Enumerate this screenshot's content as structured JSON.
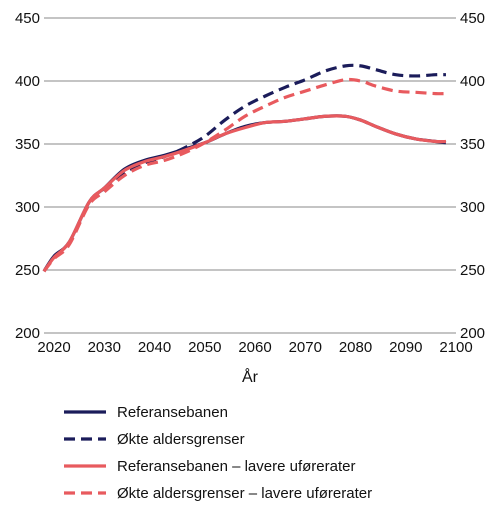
{
  "chart_data": {
    "type": "line",
    "xlabel": "År",
    "ylabel": "",
    "xlim": [
      2018,
      2100
    ],
    "ylim": [
      200,
      450
    ],
    "x_ticks": [
      2020,
      2030,
      2040,
      2050,
      2060,
      2070,
      2080,
      2090,
      2100
    ],
    "y_ticks": [
      200,
      250,
      300,
      350,
      400,
      450
    ],
    "grid": "horizontal",
    "legend_position": "bottom",
    "x": [
      2018,
      2020,
      2023,
      2027,
      2030,
      2034,
      2038,
      2042,
      2046,
      2050,
      2054,
      2058,
      2062,
      2066,
      2070,
      2074,
      2078,
      2081,
      2084,
      2088,
      2092,
      2096,
      2098
    ],
    "series": [
      {
        "name": "Referansebanen",
        "color": "#1b1c5a",
        "dash": "solid",
        "values": [
          249,
          261,
          272,
          304,
          315,
          330,
          337,
          341,
          346,
          351,
          358,
          364,
          367,
          368,
          370,
          372,
          372,
          369,
          364,
          358,
          354,
          352,
          351
        ]
      },
      {
        "name": "Økte aldersgrenser",
        "color": "#1b1c5a",
        "dash": "dashed",
        "values": [
          249,
          260,
          271,
          303,
          314,
          327,
          335,
          340,
          347,
          356,
          369,
          380,
          388,
          395,
          401,
          408,
          412,
          412,
          409,
          405,
          404,
          405,
          405
        ]
      },
      {
        "name": "Referansebanen – lavere uførerater",
        "color": "#e85a5e",
        "dash": "solid",
        "values": [
          249,
          260,
          272,
          304,
          315,
          329,
          336,
          340,
          345,
          351,
          358,
          363,
          367,
          368,
          370,
          372,
          372,
          369,
          364,
          358,
          354,
          352,
          352
        ]
      },
      {
        "name": "Økte aldersgrenser – lavere uførerater",
        "color": "#e85a5e",
        "dash": "dashed",
        "values": [
          249,
          259,
          270,
          302,
          312,
          325,
          333,
          337,
          343,
          351,
          361,
          372,
          380,
          387,
          392,
          397,
          401,
          400,
          396,
          392,
          391,
          390,
          390
        ]
      }
    ]
  }
}
